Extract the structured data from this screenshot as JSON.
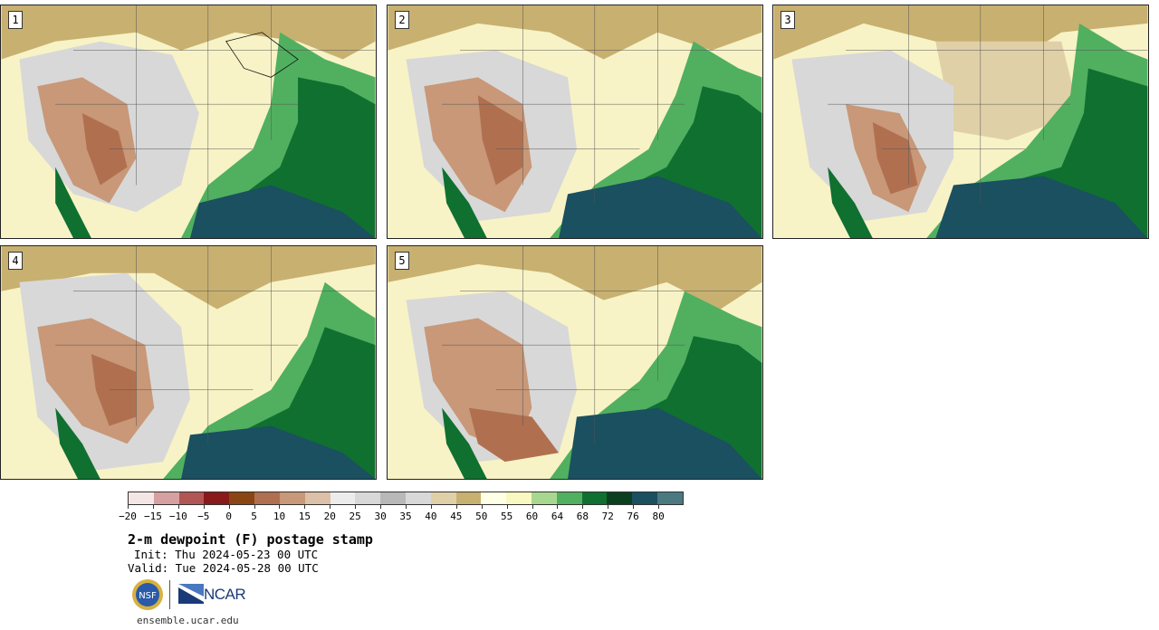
{
  "panels": [
    {
      "id": "p1",
      "label": "1"
    },
    {
      "id": "p2",
      "label": "2"
    },
    {
      "id": "p3",
      "label": "3"
    },
    {
      "id": "p4",
      "label": "4"
    },
    {
      "id": "p5",
      "label": "5"
    }
  ],
  "colorbar": {
    "colors": [
      "#f5e6e6",
      "#d6a0a0",
      "#b25555",
      "#8a1a1a",
      "#8b4513",
      "#b07050",
      "#c89878",
      "#dcc0a8",
      "#ececec",
      "#d8d8d8",
      "#b8b8b8",
      "#d8d8d8",
      "#e0d0a8",
      "#c8b070",
      "#ffffe8",
      "#f8f8c0",
      "#a8d890",
      "#50b060",
      "#107030",
      "#0a4020",
      "#1a5060",
      "#4a7a80"
    ],
    "tick_labels": [
      "−20",
      "−15",
      "−10",
      "−5",
      "0",
      "5",
      "10",
      "15",
      "20",
      "25",
      "30",
      "35",
      "40",
      "45",
      "50",
      "55",
      "60",
      "64",
      "68",
      "72",
      "76",
      "80"
    ]
  },
  "title": "2-m dewpoint (F) postage stamp",
  "init": "Init: Thu 2024-05-23 00 UTC",
  "valid": "Valid: Tue 2024-05-28 00 UTC",
  "logos": {
    "nsf": "NSF",
    "ncar": "NCAR"
  },
  "url": "ensemble.ucar.edu",
  "icons": [
    "nsf-logo-icon",
    "ncar-logo-icon"
  ]
}
